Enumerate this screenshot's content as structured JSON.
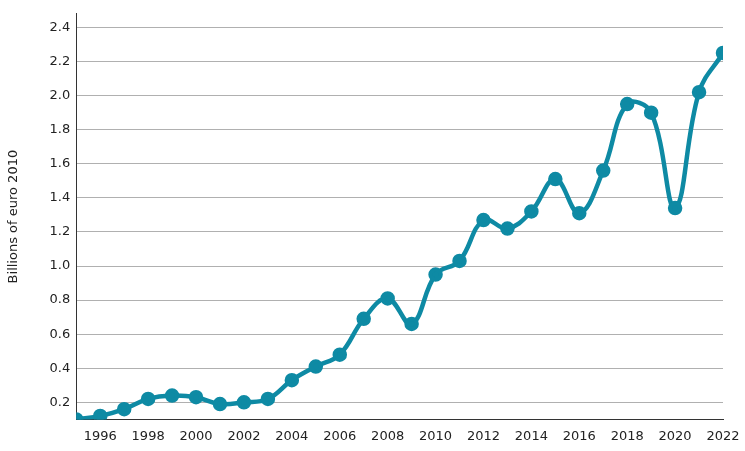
{
  "chart_data": {
    "type": "line",
    "y_label": "Billions of euro 2010",
    "x": [
      1995,
      1996,
      1997,
      1998,
      1999,
      2000,
      2001,
      2002,
      2003,
      2004,
      2005,
      2006,
      2007,
      2008,
      2009,
      2010,
      2011,
      2012,
      2013,
      2014,
      2015,
      2016,
      2017,
      2018,
      2019,
      2020,
      2021,
      2022
    ],
    "values": [
      0.1,
      0.12,
      0.16,
      0.22,
      0.24,
      0.23,
      0.19,
      0.2,
      0.22,
      0.33,
      0.41,
      0.48,
      0.69,
      0.81,
      0.66,
      0.95,
      1.03,
      1.27,
      1.22,
      1.32,
      1.51,
      1.31,
      1.56,
      1.95,
      1.9,
      1.34,
      2.02,
      2.25
    ],
    "color": "#0e8aa4",
    "marker": "circle",
    "line_style": "solid",
    "xlim": [
      1995,
      2022
    ],
    "xticks": [
      1996,
      1998,
      2000,
      2002,
      2004,
      2006,
      2008,
      2010,
      2012,
      2014,
      2016,
      2018,
      2020,
      2022
    ],
    "ylim": [
      0.1,
      2.48
    ],
    "yticks": [
      0.2,
      0.4,
      0.6,
      0.8,
      {
        "value": 1,
        "label": "1.0"
      },
      1.2,
      1.4,
      1.6,
      1.8,
      {
        "value": 2,
        "label": "2.0"
      },
      2.2,
      2.4
    ],
    "grid": true
  }
}
